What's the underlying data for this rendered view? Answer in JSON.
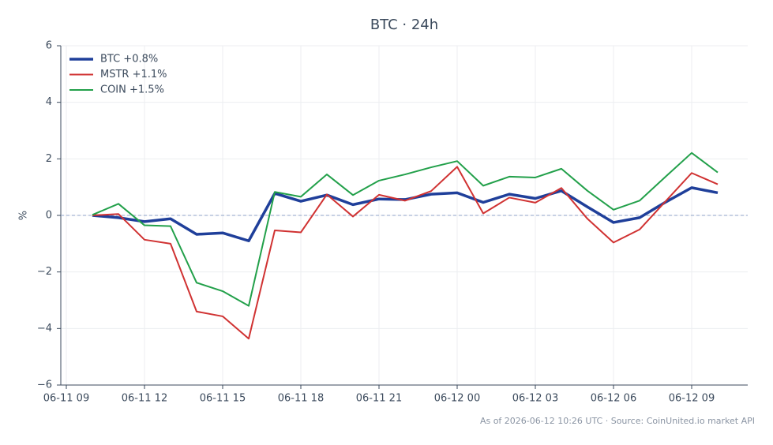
{
  "chart_data": {
    "type": "line",
    "title": "BTC · 24h",
    "y_label": "%",
    "x": [
      "06-11 10",
      "06-11 11",
      "06-11 12",
      "06-11 13",
      "06-11 14",
      "06-11 15",
      "06-11 16",
      "06-11 17",
      "06-11 18",
      "06-11 19",
      "06-11 20",
      "06-11 21",
      "06-11 22",
      "06-11 23",
      "06-12 00",
      "06-12 01",
      "06-12 02",
      "06-12 03",
      "06-12 04",
      "06-12 05",
      "06-12 06",
      "06-12 07",
      "06-12 08",
      "06-12 09",
      "06-12 10"
    ],
    "series": [
      {
        "name": "BTC +0.8%",
        "color": "#1f3f9a",
        "width": 3.5,
        "values": [
          0.0,
          -0.08,
          -0.22,
          -0.12,
          -0.67,
          -0.62,
          -0.9,
          0.78,
          0.5,
          0.72,
          0.38,
          0.58,
          0.56,
          0.75,
          0.8,
          0.46,
          0.75,
          0.6,
          0.87,
          0.3,
          -0.25,
          -0.08,
          0.47,
          0.98,
          0.8
        ]
      },
      {
        "name": "MSTR +1.1%",
        "color": "#d03232",
        "width": 2,
        "values": [
          0.0,
          0.05,
          -0.86,
          -1.0,
          -3.4,
          -3.57,
          -4.36,
          -0.53,
          -0.6,
          0.74,
          -0.04,
          0.73,
          0.52,
          0.86,
          1.72,
          0.07,
          0.63,
          0.45,
          0.97,
          -0.12,
          -0.96,
          -0.5,
          0.5,
          1.5,
          1.1
        ]
      },
      {
        "name": "COIN +1.5%",
        "color": "#22a04a",
        "width": 2,
        "values": [
          0.02,
          0.41,
          -0.35,
          -0.38,
          -2.38,
          -2.68,
          -3.2,
          0.83,
          0.66,
          1.45,
          0.72,
          1.23,
          1.45,
          1.7,
          1.92,
          1.05,
          1.37,
          1.34,
          1.65,
          0.87,
          0.2,
          0.52,
          1.37,
          2.21,
          1.52
        ]
      }
    ],
    "xlim": [
      "06-11 09",
      "06-12 11"
    ],
    "xticks": [
      "06-11 09",
      "06-11 12",
      "06-11 15",
      "06-11 18",
      "06-11 21",
      "06-12 00",
      "06-12 03",
      "06-12 06",
      "06-12 09"
    ],
    "ylim": [
      -6,
      6
    ],
    "yticks": [
      {
        "value": -6,
        "label": "−6"
      },
      {
        "value": -4,
        "label": "−4"
      },
      {
        "value": -2,
        "label": "−2"
      },
      0,
      2,
      4,
      6
    ],
    "grid": true,
    "zero_line": true,
    "legend": "upper left",
    "footer": "As of 2026-06-12 10:26 UTC · Source: CoinUnited.io market API"
  }
}
